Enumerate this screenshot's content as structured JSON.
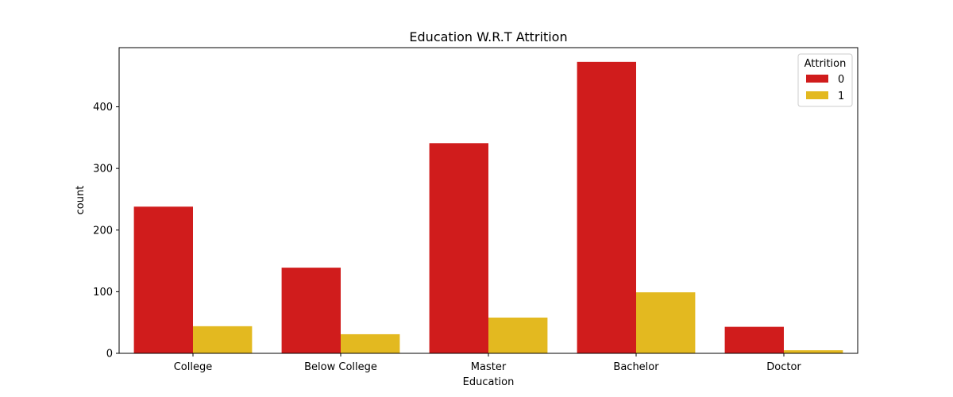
{
  "chart_data": {
    "type": "bar",
    "title": "Education W.R.T Attrition",
    "xlabel": "Education",
    "ylabel": "count",
    "categories": [
      "College",
      "Below College",
      "Master",
      "Bachelor",
      "Doctor"
    ],
    "series": [
      {
        "name": "0",
        "color": "#d01c1c",
        "values": [
          238,
          139,
          341,
          473,
          43
        ]
      },
      {
        "name": "1",
        "color": "#e3b920",
        "values": [
          44,
          31,
          58,
          99,
          5
        ]
      }
    ],
    "ylim": [
      0,
      496
    ],
    "yticks": [
      0,
      100,
      200,
      300,
      400
    ],
    "legend": {
      "title": "Attrition",
      "placement": "top-right"
    },
    "grid": false
  }
}
